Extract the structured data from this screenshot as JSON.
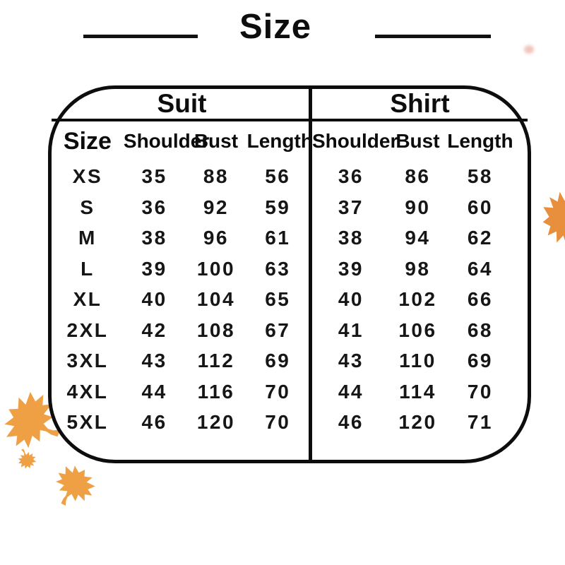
{
  "chart_data": {
    "type": "table",
    "title": "Size",
    "sections": {
      "suit": "Suit",
      "shirt": "Shirt"
    },
    "headers": {
      "size": "Size",
      "shoulder": "Shoulder",
      "bust": "Bust",
      "length": "Length"
    },
    "rows": [
      {
        "size": "XS",
        "suit": {
          "shoulder": "35",
          "bust": "88",
          "length": "56"
        },
        "shirt": {
          "shoulder": "36",
          "bust": "86",
          "length": "58"
        }
      },
      {
        "size": "S",
        "suit": {
          "shoulder": "36",
          "bust": "92",
          "length": "59"
        },
        "shirt": {
          "shoulder": "37",
          "bust": "90",
          "length": "60"
        }
      },
      {
        "size": "M",
        "suit": {
          "shoulder": "38",
          "bust": "96",
          "length": "61"
        },
        "shirt": {
          "shoulder": "38",
          "bust": "94",
          "length": "62"
        }
      },
      {
        "size": "L",
        "suit": {
          "shoulder": "39",
          "bust": "100",
          "length": "63"
        },
        "shirt": {
          "shoulder": "39",
          "bust": "98",
          "length": "64"
        }
      },
      {
        "size": "XL",
        "suit": {
          "shoulder": "40",
          "bust": "104",
          "length": "65"
        },
        "shirt": {
          "shoulder": "40",
          "bust": "102",
          "length": "66"
        }
      },
      {
        "size": "2XL",
        "suit": {
          "shoulder": "42",
          "bust": "108",
          "length": "67"
        },
        "shirt": {
          "shoulder": "41",
          "bust": "106",
          "length": "68"
        }
      },
      {
        "size": "3XL",
        "suit": {
          "shoulder": "43",
          "bust": "112",
          "length": "69"
        },
        "shirt": {
          "shoulder": "43",
          "bust": "110",
          "length": "69"
        }
      },
      {
        "size": "4XL",
        "suit": {
          "shoulder": "44",
          "bust": "116",
          "length": "70"
        },
        "shirt": {
          "shoulder": "44",
          "bust": "114",
          "length": "70"
        }
      },
      {
        "size": "5XL",
        "suit": {
          "shoulder": "46",
          "bust": "120",
          "length": "70"
        },
        "shirt": {
          "shoulder": "46",
          "bust": "120",
          "length": "71"
        }
      }
    ]
  },
  "decorations": {
    "leaf_color": "#EFA044",
    "leaf_color_right": "#E78F3C",
    "ink_color": "#0d0d0d"
  }
}
